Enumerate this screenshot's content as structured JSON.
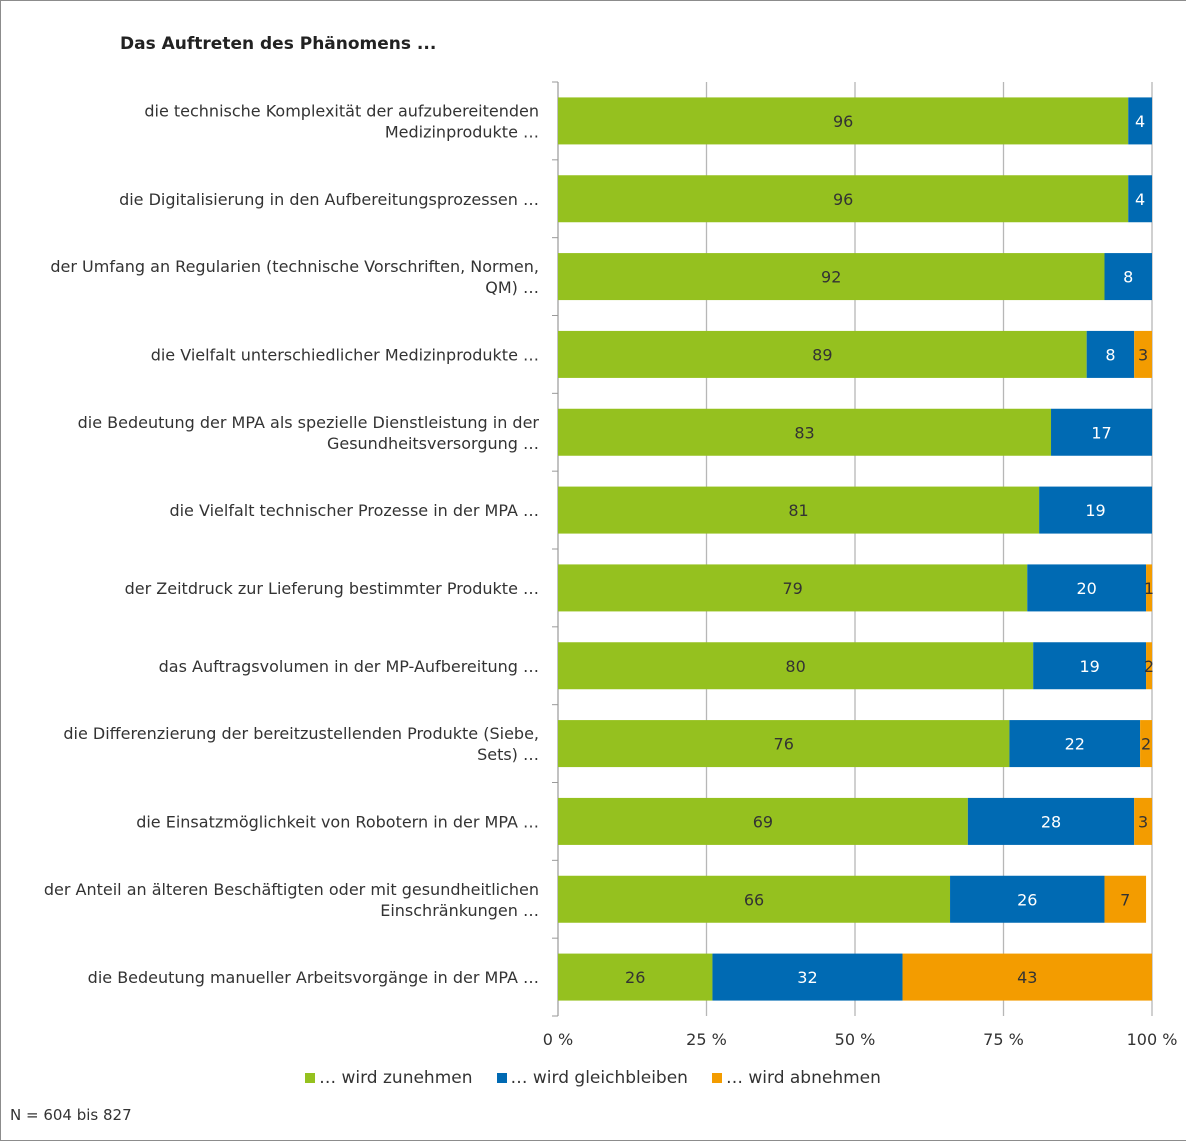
{
  "chart_data": {
    "type": "bar",
    "orientation": "horizontal",
    "stacked": true,
    "title": "Das Auftreten des Phänomens ...",
    "categories": [
      "die technische Komplexität der aufzubereitenden Medizinprodukte …",
      "die Digitalisierung in den Aufbereitungsprozessen …",
      "der Umfang an Regularien (technische Vorschriften, Normen, QM) …",
      "die Vielfalt unterschiedlicher Medizinprodukte …",
      "die Bedeutung der MPA als spezielle Dienstleistung in der Gesundheitsversorgung …",
      "die Vielfalt technischer Prozesse in der MPA …",
      "der Zeitdruck zur Lieferung bestimmter Produkte …",
      "das Auftragsvolumen in der MP-Aufbereitung …",
      "die Differenzierung der bereitzustellenden Produkte (Siebe, Sets) …",
      "die Einsatzmöglichkeit von Robotern in der MPA …",
      "der Anteil an älteren Beschäftigten oder mit gesundheitlichen Einschränkungen …",
      "die Bedeutung manueller Arbeitsvorgänge in der MPA …"
    ],
    "category_lines": [
      [
        "die technische Komplexität der aufzubereitenden",
        "Medizinprodukte …"
      ],
      [
        "die Digitalisierung in den Aufbereitungsprozessen …"
      ],
      [
        "der Umfang an Regularien (technische Vorschriften, Normen,",
        "QM) …"
      ],
      [
        "die Vielfalt unterschiedlicher Medizinprodukte …"
      ],
      [
        "die Bedeutung der MPA als spezielle Dienstleistung in der",
        "Gesundheitsversorgung …"
      ],
      [
        "die Vielfalt technischer Prozesse in der MPA …"
      ],
      [
        "der Zeitdruck zur Lieferung bestimmter Produkte …"
      ],
      [
        "das Auftragsvolumen in der MP-Aufbereitung …"
      ],
      [
        "die Differenzierung der bereitzustellenden Produkte (Siebe,",
        "Sets) …"
      ],
      [
        "die Einsatzmöglichkeit von Robotern in der MPA …"
      ],
      [
        "der Anteil an älteren Beschäftigten oder mit gesundheitlichen",
        "Einschränkungen …"
      ],
      [
        "die Bedeutung manueller Arbeitsvorgänge in der MPA …"
      ]
    ],
    "series": [
      {
        "name": "… wird zunehmen",
        "color": "#95c11f",
        "values": [
          96,
          96,
          92,
          89,
          83,
          81,
          79,
          80,
          76,
          69,
          66,
          26
        ]
      },
      {
        "name": "… wird gleichbleiben",
        "color": "#006ab3",
        "values": [
          4,
          4,
          8,
          8,
          17,
          19,
          20,
          19,
          22,
          28,
          26,
          32
        ]
      },
      {
        "name": "… wird abnehmen",
        "color": "#f39c00",
        "values": [
          0,
          0,
          0,
          3,
          0,
          0,
          1,
          2,
          2,
          3,
          7,
          43
        ]
      }
    ],
    "xlim": [
      0,
      100
    ],
    "x_ticks": [
      "0 %",
      "25 %",
      "50 %",
      "75 %",
      "100 %"
    ],
    "grid": true,
    "legend_position": "bottom"
  },
  "footnote": "N = 604 bis 827"
}
